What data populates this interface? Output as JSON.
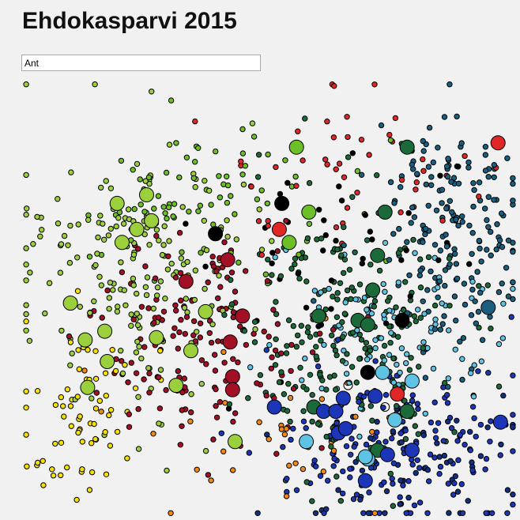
{
  "header": {
    "title": "Ehdokasparvi 2015"
  },
  "search": {
    "value": "Ant",
    "placeholder": ""
  },
  "chart_data": {
    "type": "scatter",
    "title": "",
    "xlabel": "",
    "ylabel": "",
    "xlim": [
      0,
      100
    ],
    "ylim": [
      0,
      100
    ],
    "grid": false,
    "legend": "none",
    "series": [
      {
        "color": "#f7e000",
        "count": 70,
        "center": [
          11,
          25
        ],
        "spread": [
          6,
          10
        ],
        "large": []
      },
      {
        "color": "#9ccf3c",
        "count": 190,
        "center": [
          22,
          58
        ],
        "spread": [
          12,
          16
        ],
        "large": [
          [
            9.5,
            49
          ],
          [
            12.5,
            40.5
          ],
          [
            16.5,
            42.5
          ],
          [
            17,
            35.5
          ],
          [
            13,
            29.5
          ],
          [
            27,
            41
          ],
          [
            34,
            38
          ],
          [
            37,
            47
          ],
          [
            31,
            30
          ],
          [
            43,
            17
          ],
          [
            19,
            72
          ],
          [
            25,
            74
          ],
          [
            26,
            68
          ],
          [
            23,
            66
          ],
          [
            20,
            63
          ]
        ]
      },
      {
        "color": "#6dbf27",
        "count": 80,
        "center": [
          38,
          72
        ],
        "spread": [
          14,
          10
        ],
        "large": [
          [
            55.5,
            85
          ],
          [
            58,
            70
          ],
          [
            54,
            63
          ]
        ]
      },
      {
        "color": "#a31025",
        "count": 160,
        "center": [
          35,
          40
        ],
        "spread": [
          11,
          12
        ],
        "large": [
          [
            41.5,
            59
          ],
          [
            33,
            54
          ],
          [
            44.5,
            46
          ],
          [
            42,
            40
          ],
          [
            42.5,
            32
          ],
          [
            42.5,
            29
          ]
        ]
      },
      {
        "color": "#e02727",
        "count": 50,
        "center": [
          65,
          80
        ],
        "spread": [
          14,
          9
        ],
        "large": [
          [
            96.5,
            86
          ],
          [
            52,
            66
          ],
          [
            76,
            28
          ]
        ]
      },
      {
        "color": "#000000",
        "count": 45,
        "center": [
          60,
          62
        ],
        "spread": [
          14,
          12
        ],
        "large": [
          [
            39,
            65
          ],
          [
            52.5,
            72
          ],
          [
            77,
            45
          ],
          [
            70,
            33
          ]
        ]
      },
      {
        "color": "#1b6b3a",
        "count": 230,
        "center": [
          65,
          40
        ],
        "spread": [
          12,
          16
        ],
        "large": [
          [
            78,
            85
          ],
          [
            73.5,
            70
          ],
          [
            72,
            60
          ],
          [
            71,
            52
          ],
          [
            60,
            46
          ],
          [
            68,
            45
          ],
          [
            70,
            44
          ],
          [
            59,
            25
          ],
          [
            78,
            24
          ],
          [
            72,
            15
          ]
        ]
      },
      {
        "color": "#5fc3e4",
        "count": 110,
        "center": [
          74,
          40
        ],
        "spread": [
          11,
          12
        ],
        "large": [
          [
            73,
            33
          ],
          [
            79,
            31
          ],
          [
            75.5,
            22
          ],
          [
            70,
            13
          ],
          [
            57.5,
            17
          ],
          [
            69.5,
            13.5
          ]
        ]
      },
      {
        "color": "#1a5f7d",
        "count": 190,
        "center": [
          87,
          65
        ],
        "spread": [
          8,
          14
        ],
        "large": [
          [
            94.5,
            48
          ]
        ]
      },
      {
        "color": "#1b37b8",
        "count": 170,
        "center": [
          76,
          17
        ],
        "spread": [
          13,
          9
        ],
        "large": [
          [
            51,
            25
          ],
          [
            61,
            24
          ],
          [
            63.5,
            24
          ],
          [
            64,
            19
          ],
          [
            65.5,
            20
          ],
          [
            71.5,
            27.5
          ],
          [
            74,
            14
          ],
          [
            79,
            15
          ],
          [
            69.5,
            8
          ],
          [
            97,
            21.5
          ],
          [
            65,
            27
          ]
        ]
      },
      {
        "color": "#123080",
        "count": 60,
        "center": [
          80,
          12
        ],
        "spread": [
          12,
          7
        ],
        "large": []
      },
      {
        "color": "#ef8a17",
        "count": 40,
        "center": [
          52,
          18
        ],
        "spread": [
          16,
          10
        ],
        "large": []
      }
    ],
    "highlights": [
      [
        52.5,
        72
      ],
      [
        73.5,
        25
      ],
      [
        66,
        30
      ]
    ]
  }
}
